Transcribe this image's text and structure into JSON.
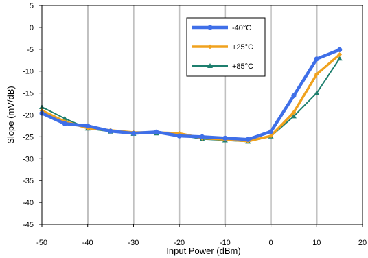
{
  "chart_data": {
    "type": "line",
    "title": "",
    "xlabel": "Input Power (dBm)",
    "ylabel": "Slope (mV/dB)",
    "xlim": [
      -50,
      20
    ],
    "ylim": [
      -45,
      5
    ],
    "xticks": [
      -50,
      -40,
      -30,
      -20,
      -10,
      0,
      10,
      20
    ],
    "yticks": [
      5,
      0,
      -5,
      -10,
      -15,
      -20,
      -25,
      -30,
      -35,
      -40,
      -45
    ],
    "xtick_labels": [
      "-50",
      "-40",
      "-30",
      "-20",
      "-10",
      "0",
      "10",
      "20"
    ],
    "ytick_labels": [
      "5",
      "0",
      "-5",
      "-10",
      "-15",
      "-20",
      "-25",
      "-30",
      "-35",
      "-40",
      "-45"
    ],
    "grid": "vertical",
    "legend_position": "top-right",
    "series": [
      {
        "name": "-40°C",
        "color": "#3f6fe8",
        "marker": "circle",
        "x": [
          -50,
          -45,
          -40,
          -35,
          -30,
          -25,
          -20,
          -15,
          -10,
          -5,
          0,
          5,
          10,
          15
        ],
        "y": [
          -19.6,
          -22.0,
          -22.5,
          -23.7,
          -24.2,
          -23.9,
          -24.8,
          -25.0,
          -25.3,
          -25.6,
          -23.8,
          -15.6,
          -7.2,
          -5.1
        ]
      },
      {
        "name": "+25°C",
        "color": "#f0a21e",
        "marker": "diamond",
        "x": [
          -50,
          -45,
          -40,
          -35,
          -30,
          -25,
          -20,
          -15,
          -10,
          -5,
          0,
          5,
          10,
          15
        ],
        "y": [
          -19.0,
          -21.5,
          -23.0,
          -23.5,
          -24.0,
          -24.0,
          -24.2,
          -25.3,
          -25.6,
          -26.0,
          -24.8,
          -19.4,
          -10.7,
          -6.2
        ]
      },
      {
        "name": "+85°C",
        "color": "#1e7f6e",
        "marker": "triangle",
        "x": [
          -50,
          -45,
          -40,
          -35,
          -30,
          -25,
          -20,
          -15,
          -10,
          -5,
          0,
          5,
          10,
          15
        ],
        "y": [
          -18.2,
          -20.8,
          -23.1,
          -23.8,
          -24.3,
          -24.2,
          -24.6,
          -25.5,
          -25.8,
          -26.1,
          -24.9,
          -20.3,
          -15.0,
          -7.1
        ]
      }
    ]
  }
}
